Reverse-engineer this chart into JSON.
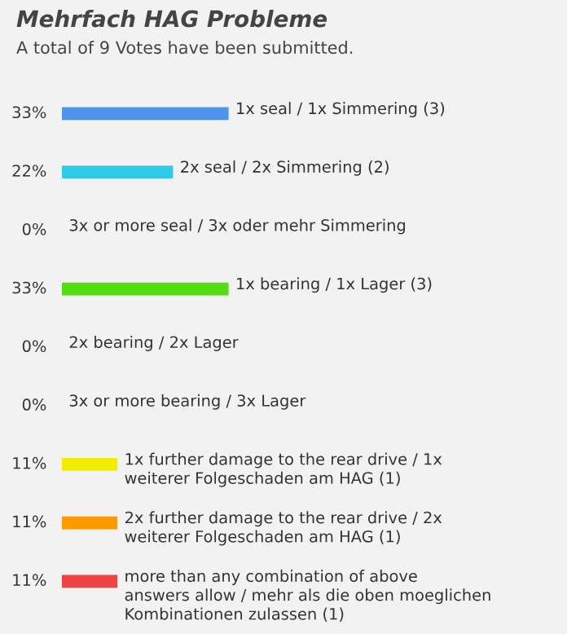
{
  "chart_data": {
    "type": "bar",
    "orientation": "horizontal",
    "title": "Mehrfach HAG Probleme",
    "subtitle": "A total of 9 Votes have been submitted.",
    "categories": [
      "1x seal / 1x Simmering (3)",
      "2x seal / 2x Simmering (2)",
      "3x or more seal / 3x oder mehr Simmering",
      "1x bearing / 1x Lager (3)",
      "2x bearing / 2x Lager",
      "3x or more bearing / 3x Lager",
      "1x further damage to the rear drive / 1x\nweiterer Folgeschaden am HAG (1)",
      "2x further damage to the rear drive / 2x\nweiterer Folgeschaden am HAG (1)",
      "more than any combination of above\nanswers allow / mehr als die oben moeglichen\nKombinationen zulassen (1)"
    ],
    "values": [
      33,
      22,
      0,
      33,
      0,
      0,
      11,
      11,
      11
    ],
    "value_labels": [
      "33%",
      "22%",
      "0%",
      "33%",
      "0%",
      "0%",
      "11%",
      "11%",
      "11%"
    ],
    "colors": [
      "#4f94ea",
      "#2fcbea",
      "#cccccc",
      "#55dd11",
      "#cccccc",
      "#cccccc",
      "#f2ee00",
      "#ff9900",
      "#ee4444"
    ],
    "xlim": [
      0,
      100
    ]
  }
}
